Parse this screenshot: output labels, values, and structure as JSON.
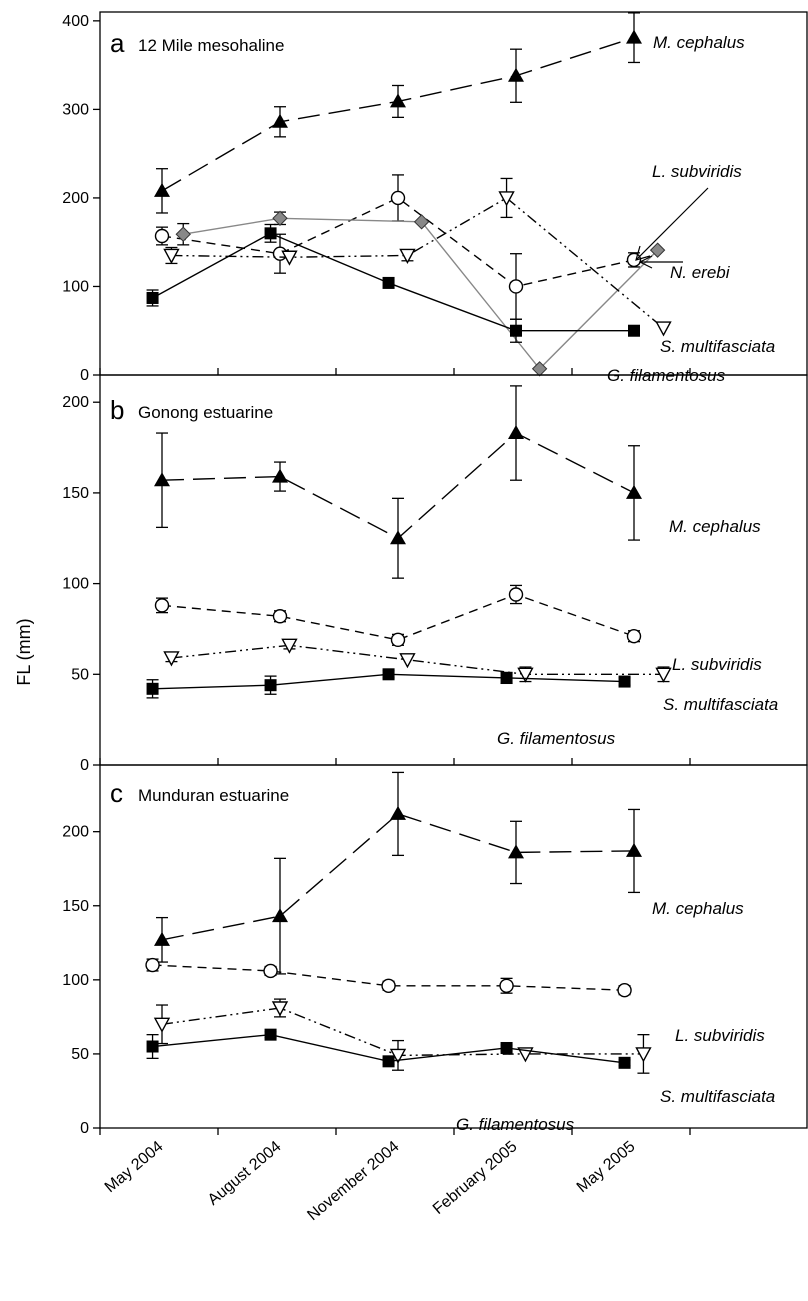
{
  "chart_data": {
    "type": "line",
    "ylabel": "FL (mm)",
    "x_categories": [
      "May 2004",
      "August 2004",
      "November 2004",
      "February 2005",
      "May 2005"
    ],
    "panels": [
      {
        "letter": "a",
        "title": "12 Mile mesohaline",
        "ylim": [
          0,
          410
        ],
        "yticks": [
          0,
          100,
          200,
          300,
          400
        ],
        "series": [
          {
            "name": "M. cephalus",
            "marker": "triangle-up",
            "style": "long-dash",
            "color": "#000000",
            "x": [
              0.0,
              1.0,
              2.0,
              3.0,
              4.0
            ],
            "y": [
              208,
              286,
              309,
              338,
              381
            ],
            "err": [
              25,
              17,
              18,
              30,
              28
            ]
          },
          {
            "name": "L. subviridis",
            "marker": "circle-open",
            "style": "dash",
            "color": "#000000",
            "x": [
              0.0,
              1.0,
              2.0,
              3.0,
              4.0
            ],
            "y": [
              157,
              137,
              200,
              100,
              130
            ],
            "err": [
              10,
              22,
              26,
              37,
              8
            ]
          },
          {
            "name": "N. erebi",
            "marker": "diamond-gray",
            "style": "gray-solid",
            "color": "#888888",
            "x": [
              0.18,
              1.0,
              2.2,
              3.2,
              4.2
            ],
            "y": [
              159,
              177,
              173,
              7,
              141
            ],
            "err": [
              12,
              7,
              0,
              0,
              0
            ]
          },
          {
            "name": "S. multifasciata",
            "marker": "triangle-down-open",
            "style": "dash-dot-dot",
            "color": "#000000",
            "x": [
              0.08,
              1.08,
              2.08,
              2.92,
              4.25
            ],
            "y": [
              135,
              133,
              135,
              200,
              53
            ],
            "err": [
              9,
              0,
              6,
              22,
              0
            ]
          },
          {
            "name": "G. filamentosus",
            "marker": "square-filled",
            "style": "solid",
            "color": "#000000",
            "x": [
              -0.08,
              0.92,
              1.92,
              3.0,
              4.0
            ],
            "y": [
              87,
              160,
              104,
              50,
              50
            ],
            "err": [
              9,
              10,
              0,
              13,
              0
            ]
          }
        ],
        "labels": [
          {
            "text": "M. cephalus",
            "series": "M. cephalus"
          },
          {
            "text": "L. subviridis",
            "series": "L. subviridis"
          },
          {
            "text": "N. erebi",
            "series": "N. erebi"
          },
          {
            "text": "S. multifasciata",
            "series": "S. multifasciata"
          },
          {
            "text": "G. filamentosus",
            "series": "G. filamentosus"
          }
        ]
      },
      {
        "letter": "b",
        "title": "Gonong estuarine",
        "ylim": [
          0,
          215
        ],
        "yticks": [
          0,
          50,
          100,
          150,
          200
        ],
        "series": [
          {
            "name": "M. cephalus",
            "marker": "triangle-up",
            "style": "long-dash",
            "color": "#000000",
            "x": [
              0.0,
              1.0,
              2.0,
              3.0,
              4.0
            ],
            "y": [
              157,
              159,
              125,
              183,
              150
            ],
            "err": [
              26,
              8,
              22,
              26,
              26
            ]
          },
          {
            "name": "L. subviridis",
            "marker": "circle-open",
            "style": "dash",
            "color": "#000000",
            "x": [
              0.0,
              1.0,
              2.0,
              3.0,
              4.0
            ],
            "y": [
              88,
              82,
              69,
              94,
              71
            ],
            "err": [
              4,
              3,
              3,
              5,
              3
            ]
          },
          {
            "name": "S. multifasciata",
            "marker": "triangle-down-open",
            "style": "dash-dot-dot",
            "color": "#000000",
            "x": [
              0.08,
              1.08,
              2.08,
              3.08,
              4.25
            ],
            "y": [
              59,
              66,
              58,
              50,
              50
            ],
            "err": [
              2,
              2,
              0,
              4,
              4
            ]
          },
          {
            "name": "G. filamentosus",
            "marker": "square-filled",
            "style": "solid",
            "color": "#000000",
            "x": [
              -0.08,
              0.92,
              1.92,
              2.92,
              3.92
            ],
            "y": [
              42,
              44,
              50,
              48,
              46
            ],
            "err": [
              5,
              5,
              2,
              3,
              2
            ]
          }
        ],
        "labels": [
          {
            "text": "M. cephalus",
            "series": "M. cephalus"
          },
          {
            "text": "L. subviridis",
            "series": "L. subviridis"
          },
          {
            "text": "S. multifasciata",
            "series": "S. multifasciata"
          },
          {
            "text": "G. filamentosus",
            "series": "G. filamentosus"
          }
        ]
      },
      {
        "letter": "c",
        "title": "Munduran estuarine",
        "ylim": [
          0,
          245
        ],
        "yticks": [
          0,
          50,
          100,
          150,
          200
        ],
        "series": [
          {
            "name": "M. cephalus",
            "marker": "triangle-up",
            "style": "long-dash",
            "color": "#000000",
            "x": [
              0.0,
              1.0,
              2.0,
              3.0,
              4.0
            ],
            "y": [
              127,
              143,
              212,
              186,
              187
            ],
            "err": [
              15,
              39,
              28,
              21,
              28
            ]
          },
          {
            "name": "L. subviridis",
            "marker": "circle-open",
            "style": "dash",
            "color": "#000000",
            "x": [
              -0.08,
              0.92,
              1.92,
              2.92,
              3.92
            ],
            "y": [
              110,
              106,
              96,
              96,
              93
            ],
            "err": [
              4,
              3,
              3,
              5,
              3
            ]
          },
          {
            "name": "S. multifasciata",
            "marker": "triangle-down-open",
            "style": "dash-dot-dot",
            "color": "#000000",
            "x": [
              0.0,
              1.0,
              2.0,
              3.08,
              4.08
            ],
            "y": [
              70,
              81,
              49,
              50,
              50
            ],
            "err": [
              13,
              6,
              10,
              0,
              13
            ]
          },
          {
            "name": "G. filamentosus",
            "marker": "square-filled",
            "style": "solid",
            "color": "#000000",
            "x": [
              -0.08,
              0.92,
              1.92,
              2.92,
              3.92
            ],
            "y": [
              55,
              63,
              45,
              54,
              44
            ],
            "err": [
              8,
              2,
              2,
              2,
              2
            ]
          }
        ],
        "labels": [
          {
            "text": "M. cephalus",
            "series": "M. cephalus"
          },
          {
            "text": "L. subviridis",
            "series": "L. subviridis"
          },
          {
            "text": "S. multifasciata",
            "series": "S. multifasciata"
          },
          {
            "text": "G. filamentosus",
            "series": "G. filamentosus"
          }
        ]
      }
    ]
  }
}
